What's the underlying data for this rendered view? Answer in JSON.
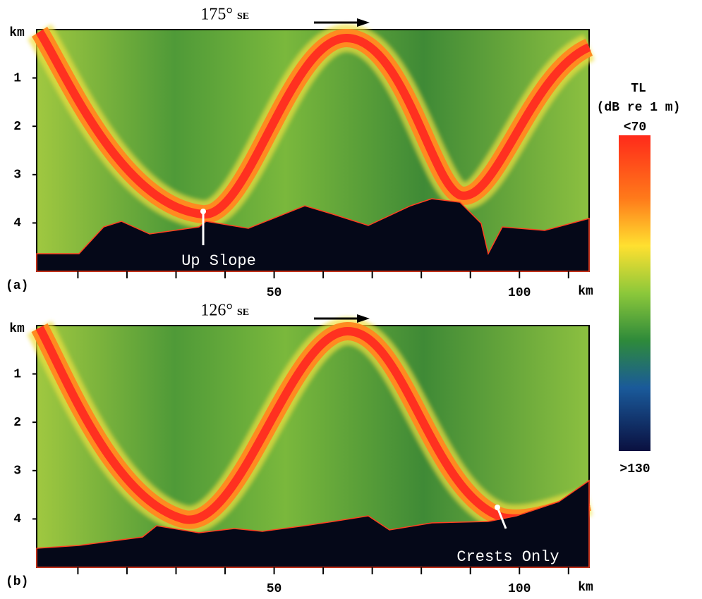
{
  "panels": [
    {
      "label": "(a)",
      "bearing": "175°",
      "direction": "SE",
      "annotation": "Up Slope",
      "y_unit": "km",
      "x_unit": "km",
      "ylim": [
        0,
        5
      ],
      "yticks": [
        1,
        2,
        3,
        4
      ],
      "xlim": [
        1.6,
        114.2
      ],
      "xticks": [
        50,
        100
      ],
      "xminor": [
        10,
        20,
        30,
        40,
        60,
        70,
        80,
        90,
        110
      ]
    },
    {
      "label": "(b)",
      "bearing": "126°",
      "direction": "SE",
      "annotation": "Crests Only",
      "y_unit": "km",
      "x_unit": "km",
      "ylim": [
        0,
        5
      ],
      "yticks": [
        1,
        2,
        3,
        4
      ],
      "xlim": [
        1.6,
        114.2
      ],
      "xticks": [
        50,
        100
      ],
      "xminor": [
        10,
        20,
        30,
        40,
        60,
        70,
        80,
        90,
        110
      ]
    }
  ],
  "colorbar": {
    "title": "TL",
    "subtitle": "(dB re 1 m)",
    "top_label": "<70",
    "bottom_label": ">130"
  }
}
